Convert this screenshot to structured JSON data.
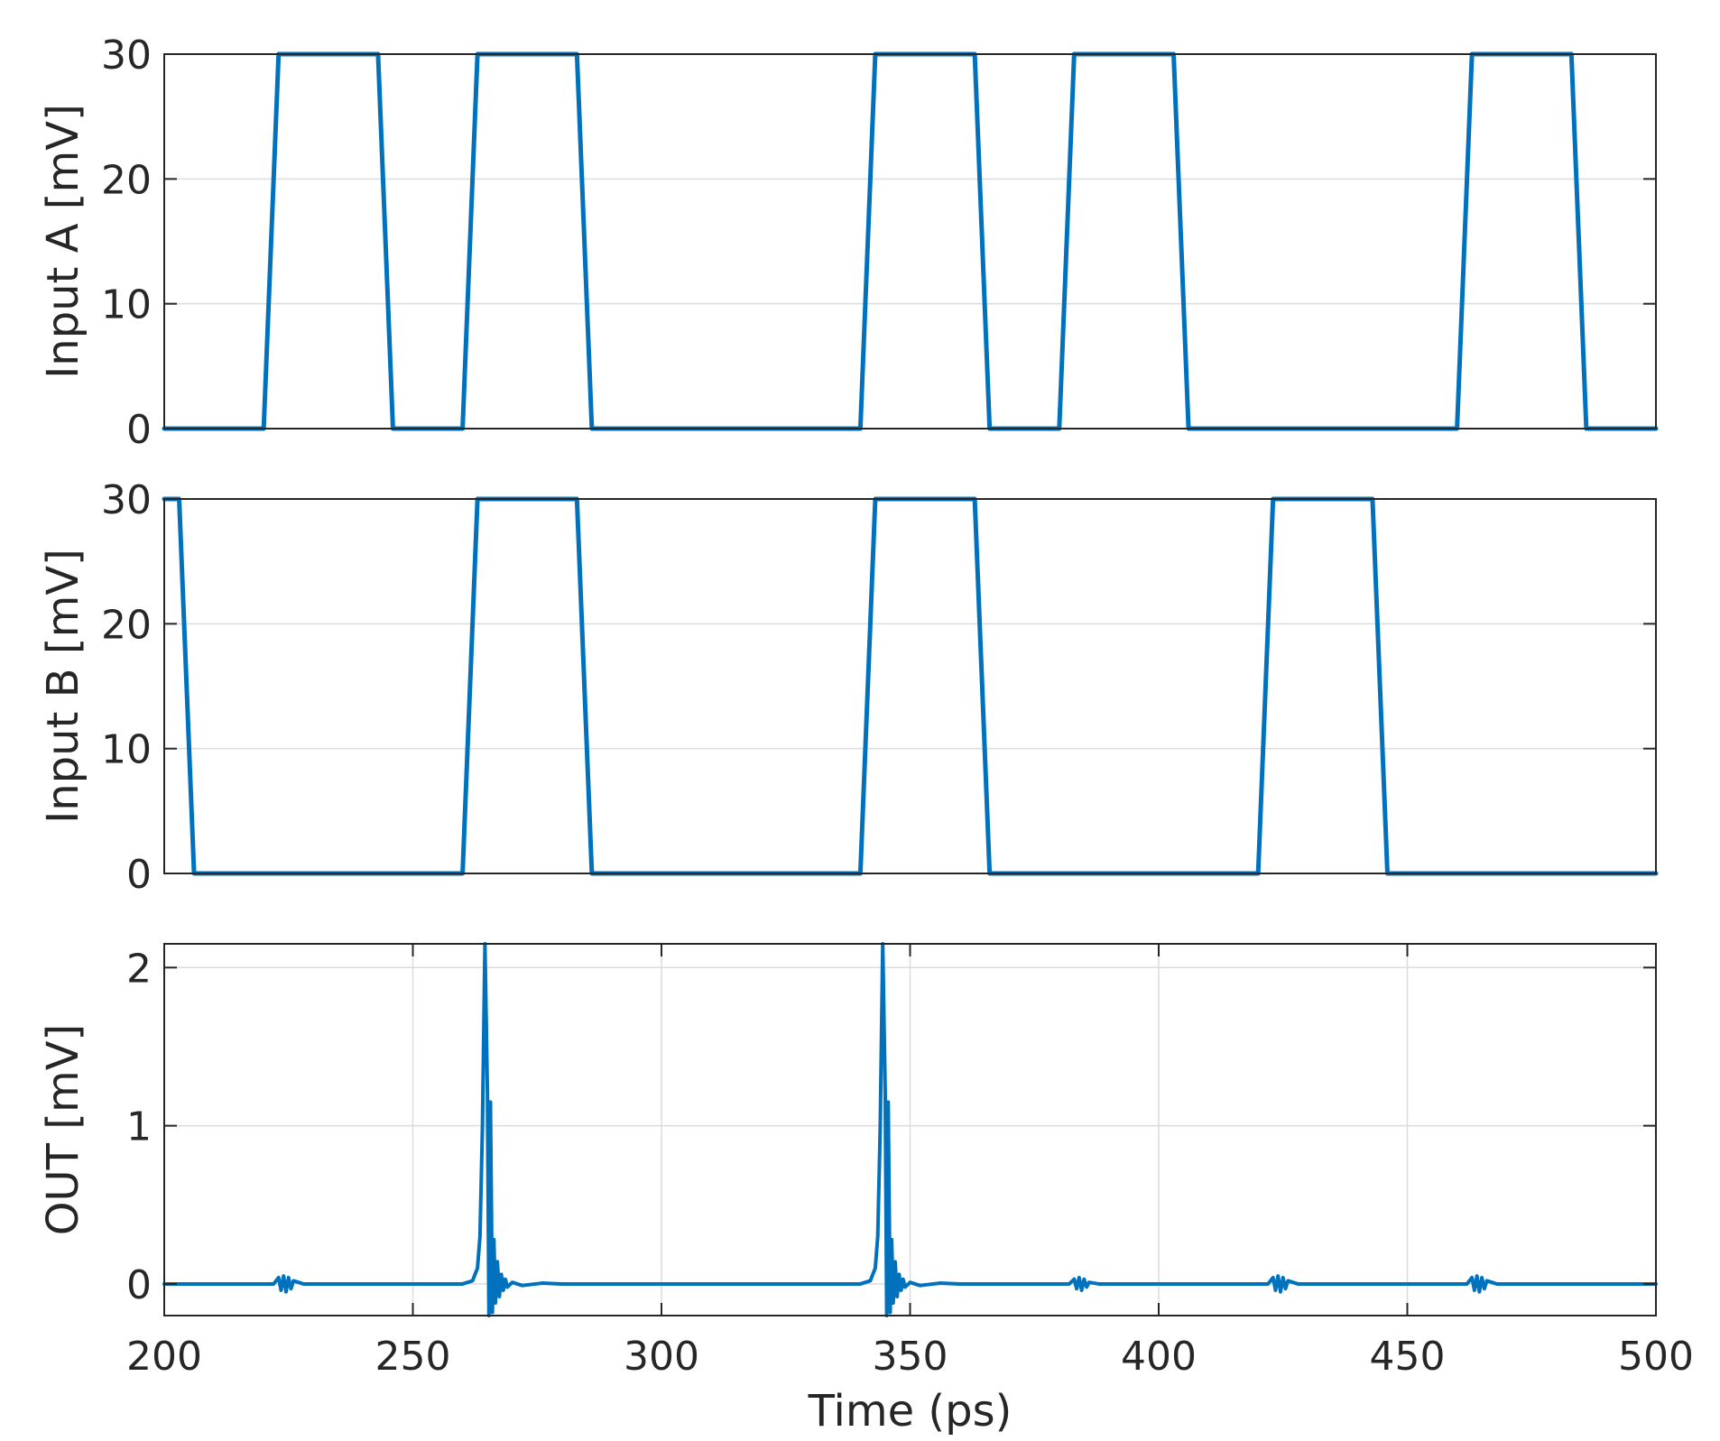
{
  "chart_data": [
    {
      "type": "line",
      "id": "input-a",
      "ylabel": "Input A [mV]",
      "xlim": [
        200,
        500
      ],
      "ylim": [
        0,
        30
      ],
      "yticks": [
        0,
        10,
        20,
        30
      ],
      "xticks": [],
      "xticklabels_shown": false,
      "grid": {
        "x": false,
        "y": true
      },
      "series": [
        {
          "color": "#0072BD",
          "x": [
            200,
            220,
            223,
            243,
            246,
            260,
            263,
            283,
            286,
            340,
            343,
            363,
            366,
            380,
            383,
            403,
            406,
            460,
            463,
            483,
            486,
            500
          ],
          "y": [
            0,
            0,
            30,
            30,
            0,
            0,
            30,
            30,
            0,
            0,
            30,
            30,
            0,
            0,
            30,
            30,
            0,
            0,
            30,
            30,
            0,
            0
          ]
        }
      ]
    },
    {
      "type": "line",
      "id": "input-b",
      "ylabel": "Input B [mV]",
      "xlim": [
        200,
        500
      ],
      "ylim": [
        0,
        30
      ],
      "yticks": [
        0,
        10,
        20,
        30
      ],
      "xticks": [],
      "xticklabels_shown": false,
      "grid": {
        "x": false,
        "y": true
      },
      "series": [
        {
          "color": "#0072BD",
          "x": [
            200,
            203,
            206,
            260,
            263,
            283,
            286,
            340,
            343,
            363,
            366,
            420,
            423,
            443,
            446,
            500
          ],
          "y": [
            30,
            30,
            0,
            0,
            30,
            30,
            0,
            0,
            30,
            30,
            0,
            0,
            30,
            30,
            0,
            0
          ]
        }
      ]
    },
    {
      "type": "line",
      "id": "out",
      "ylabel": "OUT [mV]",
      "xlabel": "Time (ps)",
      "xlim": [
        200,
        500
      ],
      "ylim": [
        -0.2,
        2.15
      ],
      "yticks": [
        0,
        1,
        2
      ],
      "xticks": [
        200,
        250,
        300,
        350,
        400,
        450,
        500
      ],
      "xticklabels_shown": true,
      "grid": {
        "x": true,
        "y": true
      },
      "series": [
        {
          "color": "#0072BD",
          "x": [
            200,
            222,
            223,
            223.5,
            224,
            224.5,
            225,
            225.5,
            226,
            227,
            228,
            260,
            262,
            263,
            263.5,
            264,
            264.5,
            265,
            265.3,
            265.6,
            266,
            266.3,
            266.6,
            267,
            267.4,
            267.8,
            268.2,
            268.6,
            269,
            270,
            272,
            276,
            280,
            340,
            342,
            343,
            343.5,
            344,
            344.5,
            345,
            345.3,
            345.6,
            346,
            346.3,
            346.6,
            347,
            347.4,
            347.8,
            348.2,
            348.6,
            349,
            350,
            352,
            356,
            360,
            382,
            383,
            383.5,
            384,
            384.5,
            385,
            385.5,
            386,
            387,
            388,
            422,
            423,
            423.5,
            424,
            424.5,
            425,
            425.5,
            426,
            427,
            428,
            462,
            463,
            463.5,
            464,
            464.5,
            465,
            465.5,
            466,
            467,
            468,
            500
          ],
          "y": [
            0,
            0,
            0.04,
            -0.04,
            0.05,
            -0.05,
            0.04,
            -0.03,
            0.02,
            0.01,
            0,
            0,
            0.02,
            0.1,
            0.3,
            1.0,
            2.15,
            1.2,
            -0.2,
            1.15,
            -0.18,
            0.28,
            -0.12,
            0.14,
            -0.08,
            0.06,
            -0.04,
            0.03,
            -0.02,
            0.01,
            -0.01,
            0.005,
            0,
            0,
            0.02,
            0.1,
            0.3,
            1.0,
            2.15,
            1.2,
            -0.2,
            1.15,
            -0.18,
            0.28,
            -0.12,
            0.14,
            -0.08,
            0.06,
            -0.04,
            0.03,
            -0.02,
            0.01,
            -0.01,
            0.005,
            0,
            0,
            0.03,
            -0.03,
            0.04,
            -0.04,
            0.03,
            -0.02,
            0.01,
            0.005,
            0,
            0,
            0.04,
            -0.04,
            0.05,
            -0.05,
            0.04,
            -0.03,
            0.02,
            0.01,
            0,
            0,
            0.04,
            -0.04,
            0.05,
            -0.05,
            0.04,
            -0.03,
            0.02,
            0.01,
            0,
            0
          ]
        }
      ]
    }
  ]
}
